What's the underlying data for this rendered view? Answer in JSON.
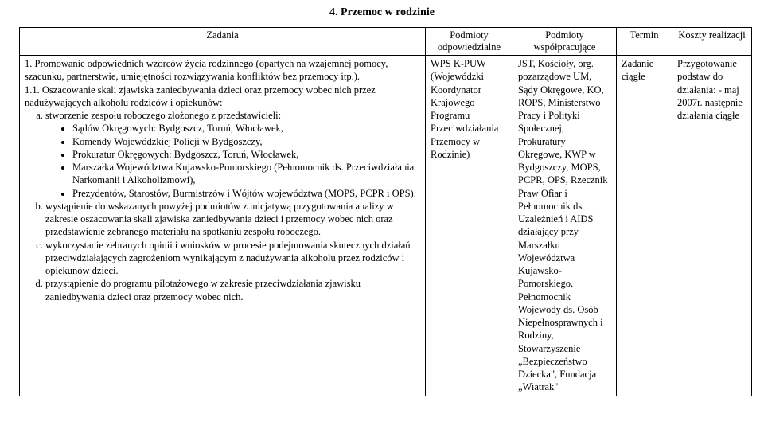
{
  "title": "4. Przemoc w rodzinie",
  "headers": {
    "zadania": "Zadania",
    "odpowiedzialne": "Podmioty odpowiedzialne",
    "wspolpracujace": "Podmioty współpracujące",
    "termin": "Termin",
    "koszty": "Koszty realizacji"
  },
  "row1": {
    "zadania_p1": "1. Promowanie odpowiednich wzorców życia rodzinnego (opartych na wzajemnej pomocy, szacunku, partnerstwie, umiejętności rozwiązywania konfliktów bez przemocy itp.).",
    "zadania_p2": "1.1. Oszacowanie skali zjawiska zaniedbywania dzieci oraz przemocy wobec nich przez nadużywających alkoholu rodziców i opiekunów:",
    "item_a": "stworzenie zespołu roboczego złożonego z przedstawicieli:",
    "bullets": {
      "b1": "Sądów Okręgowych: Bydgoszcz, Toruń, Włocławek,",
      "b2": "Komendy Wojewódzkiej Policji w Bydgoszczy,",
      "b3": "Prokuratur Okręgowych: Bydgoszcz, Toruń, Włocławek,",
      "b4": "Marszałka Województwa Kujawsko-Pomorskiego (Pełnomocnik ds. Przeciwdziałania Narkomanii i Alkoholizmowi),",
      "b5": "Prezydentów, Starostów, Burmistrzów i Wójtów województwa (MOPS, PCPR i OPS)."
    },
    "item_b": "wystąpienie do wskazanych powyżej podmiotów z inicjatywą przygotowania analizy w zakresie oszacowania skali zjawiska zaniedbywania dzieci i przemocy wobec nich oraz przedstawienie zebranego materiału na spotkaniu zespołu roboczego.",
    "item_c": "wykorzystanie zebranych opinii i wniosków w procesie podejmowania skutecznych działań przeciwdziałających zagrożeniom wynikającym z nadużywania alkoholu przez rodziców i opiekunów dzieci.",
    "item_d": "przystąpienie do programu pilotażowego w zakresie przeciwdziałania zjawisku zaniedbywania dzieci oraz przemocy wobec nich.",
    "odp": "WPS K-PUW (Wojewódzki Koordynator Krajowego Programu Przeciwdziałania Przemocy w Rodzinie)",
    "wsp": "JST, Kościoły, org. pozarządowe UM, Sądy Okręgowe, KO, ROPS, Ministerstwo Pracy i Polityki Społecznej, Prokuratury Okręgowe, KWP w Bydgoszczy, MOPS, PCPR, OPS, Rzecznik Praw Ofiar i Pełnomocnik ds. Uzależnień i AIDS działający przy Marszałku Województwa Kujawsko-Pomorskiego, Pełnomocnik Wojewody ds. Osób Niepełnosprawnych i Rodziny, Stowarzyszenie „Bezpieczeństwo Dziecka\", Fundacja „Wiatrak\"",
    "termin": "Zadanie ciągłe",
    "koszty": "Przygotowanie podstaw do działania: - maj 2007r. następnie działania ciągłe"
  }
}
